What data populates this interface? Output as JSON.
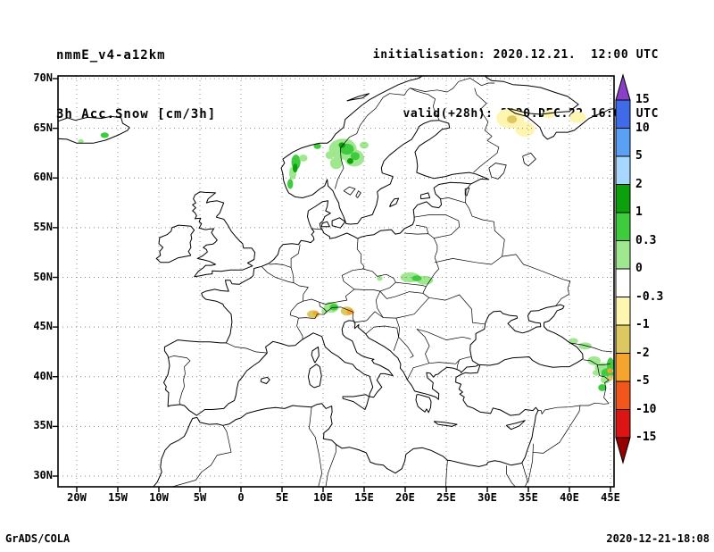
{
  "header": {
    "model": "nmmE_v4-a12km",
    "field": "3h Acc.Snow [cm/3h]",
    "init_line": "initialisation: 2020.12.21.  12:00 UTC",
    "valid_line": "valid(+28h): 2020.DEC.22 16:00 UTC"
  },
  "footer": {
    "left": "GrADS/COLA",
    "right": "2020-12-21-18:08"
  },
  "chart_data": {
    "type": "heatmap",
    "title": "3h Acc.Snow [cm/3h]",
    "model": "nmmE_v4-a12km",
    "initialisation": "2020.12.21. 12:00 UTC",
    "valid": "(+28h) 2020.DEC.22 16:00 UTC",
    "domain": {
      "lon_range": [
        -22.3,
        45.4
      ],
      "lat_range": [
        28.9,
        70.3
      ]
    },
    "grid": "dotted, 5 degree spacing",
    "x_ticks": [
      {
        "label": "20W",
        "lon": -20
      },
      {
        "label": "15W",
        "lon": -15
      },
      {
        "label": "10W",
        "lon": -10
      },
      {
        "label": "5W",
        "lon": -5
      },
      {
        "label": "0",
        "lon": 0
      },
      {
        "label": "5E",
        "lon": 5
      },
      {
        "label": "10E",
        "lon": 10
      },
      {
        "label": "15E",
        "lon": 15
      },
      {
        "label": "20E",
        "lon": 20
      },
      {
        "label": "25E",
        "lon": 25
      },
      {
        "label": "30E",
        "lon": 30
      },
      {
        "label": "35E",
        "lon": 35
      },
      {
        "label": "40E",
        "lon": 40
      },
      {
        "label": "45E",
        "lon": 45
      }
    ],
    "y_ticks": [
      {
        "label": "70N",
        "lat": 70
      },
      {
        "label": "65N",
        "lat": 65
      },
      {
        "label": "60N",
        "lat": 60
      },
      {
        "label": "55N",
        "lat": 55
      },
      {
        "label": "50N",
        "lat": 50
      },
      {
        "label": "45N",
        "lat": 45
      },
      {
        "label": "40N",
        "lat": 40
      },
      {
        "label": "35N",
        "lat": 35
      },
      {
        "label": "30N",
        "lat": 30
      }
    ],
    "palette": {
      "purple": "#8a3fc8",
      "blue": "#3f6be8",
      "light_blue": "#5aa0f5",
      "pale_blue": "#a8d8ff",
      "dark_green": "#0da00d",
      "green": "#3ecb3e",
      "light_green": "#9fe88f",
      "white": "#ffffff",
      "pale_yellow": "#fdf5b0",
      "khaki": "#ddc760",
      "orange": "#f5a42d",
      "orange_red": "#f2561d",
      "red": "#dc1414",
      "dark_red": "#960000"
    },
    "colorbar": {
      "units": "cm/3h",
      "levels": [
        "15",
        "10",
        "5",
        "2",
        "1",
        "0.3",
        "0",
        "-0.3",
        "-1",
        "-2",
        "-5",
        "-10",
        "-15"
      ],
      "colors_top_to_bottom": [
        "purple",
        "blue",
        "light_blue",
        "pale_blue",
        "dark_green",
        "green",
        "light_green",
        "white",
        "pale_yellow",
        "khaki",
        "orange",
        "orange_red",
        "red",
        "dark_red"
      ],
      "legend_position": "right"
    },
    "snow_patches": [
      {
        "region": "central-scandinavia",
        "lon": 12.4,
        "lat": 62.9,
        "rx": 1.7,
        "ry": 1.05,
        "color": "light_green",
        "level": "0 to 0.3"
      },
      {
        "region": "central-scandinavia",
        "lon": 13.8,
        "lat": 62.0,
        "rx": 1.2,
        "ry": 0.85,
        "color": "light_green",
        "level": "0 to 0.3"
      },
      {
        "region": "central-scandinavia",
        "lon": 11.6,
        "lat": 61.5,
        "rx": 0.75,
        "ry": 0.6,
        "color": "light_green",
        "level": "0 to 0.3"
      },
      {
        "region": "central-scandinavia",
        "lon": 12.9,
        "lat": 63.45,
        "rx": 0.8,
        "ry": 0.45,
        "color": "light_green",
        "level": "0 to 0.3"
      },
      {
        "region": "central-scandinavia",
        "lon": 15.0,
        "lat": 63.3,
        "rx": 0.55,
        "ry": 0.35,
        "color": "light_green",
        "level": "0 to 0.3"
      },
      {
        "region": "central-scandinavia",
        "lon": 10.8,
        "lat": 62.3,
        "rx": 0.5,
        "ry": 0.4,
        "color": "light_green",
        "level": "0 to 0.3"
      },
      {
        "region": "central-scandinavia",
        "lon": 12.9,
        "lat": 62.9,
        "rx": 0.85,
        "ry": 0.55,
        "color": "green",
        "level": "0.3 to 1"
      },
      {
        "region": "central-scandinavia",
        "lon": 13.9,
        "lat": 62.2,
        "rx": 0.55,
        "ry": 0.4,
        "color": "green",
        "level": "0.3 to 1"
      },
      {
        "region": "central-scandinavia",
        "lon": 12.3,
        "lat": 63.3,
        "rx": 0.4,
        "ry": 0.28,
        "color": "dark_green",
        "level": "1 to 2"
      },
      {
        "region": "central-scandinavia",
        "lon": 13.3,
        "lat": 61.7,
        "rx": 0.38,
        "ry": 0.3,
        "color": "dark_green",
        "level": "1 to 2"
      },
      {
        "region": "west-norway",
        "lon": 6.7,
        "lat": 61.6,
        "rx": 0.55,
        "ry": 0.75,
        "color": "green",
        "level": "0.3 to 1"
      },
      {
        "region": "west-norway",
        "lon": 6.3,
        "lat": 60.5,
        "rx": 0.45,
        "ry": 0.65,
        "color": "light_green",
        "level": "0 to 0.3"
      },
      {
        "region": "west-norway",
        "lon": 6.6,
        "lat": 61.0,
        "rx": 0.3,
        "ry": 0.45,
        "color": "dark_green",
        "level": "1 to 2"
      },
      {
        "region": "west-norway",
        "lon": 6.0,
        "lat": 59.4,
        "rx": 0.35,
        "ry": 0.5,
        "color": "green",
        "level": "0.3 to 1"
      },
      {
        "region": "west-norway",
        "lon": 7.6,
        "lat": 62.0,
        "rx": 0.5,
        "ry": 0.35,
        "color": "light_green",
        "level": "0 to 0.3"
      },
      {
        "region": "trondelag",
        "lon": 9.3,
        "lat": 63.2,
        "rx": 0.45,
        "ry": 0.3,
        "color": "green",
        "level": "0.3 to 1"
      },
      {
        "region": "iceland-east",
        "lon": -16.6,
        "lat": 64.3,
        "rx": 0.5,
        "ry": 0.28,
        "color": "green",
        "level": "0.3 to 1"
      },
      {
        "region": "iceland-south",
        "lon": -19.5,
        "lat": 63.7,
        "rx": 0.35,
        "ry": 0.2,
        "color": "light_green",
        "level": "0 to 0.3"
      },
      {
        "region": "kola-white-sea",
        "lon": 32.8,
        "lat": 66.0,
        "rx": 1.7,
        "ry": 1.0,
        "color": "pale_yellow",
        "level": "-1 to -0.3"
      },
      {
        "region": "kola-white-sea",
        "lon": 34.6,
        "lat": 64.9,
        "rx": 1.2,
        "ry": 0.75,
        "color": "pale_yellow",
        "level": "-1 to -0.3"
      },
      {
        "region": "kola-white-sea",
        "lon": 33.0,
        "lat": 65.9,
        "rx": 0.6,
        "ry": 0.4,
        "color": "khaki",
        "level": "-2 to -1"
      },
      {
        "region": "kola-white-sea",
        "lon": 37.5,
        "lat": 66.4,
        "rx": 0.7,
        "ry": 0.4,
        "color": "pale_yellow",
        "level": "-1 to -0.3"
      },
      {
        "region": "arkhangelsk",
        "lon": 41.0,
        "lat": 66.1,
        "rx": 1.0,
        "ry": 0.55,
        "color": "pale_yellow",
        "level": "-1 to -0.3"
      },
      {
        "region": "carpathians",
        "lon": 20.6,
        "lat": 50.0,
        "rx": 1.2,
        "ry": 0.5,
        "color": "light_green",
        "level": "0 to 0.3"
      },
      {
        "region": "carpathians",
        "lon": 22.4,
        "lat": 49.7,
        "rx": 1.0,
        "ry": 0.45,
        "color": "light_green",
        "level": "0 to 0.3"
      },
      {
        "region": "carpathians",
        "lon": 21.4,
        "lat": 49.9,
        "rx": 0.6,
        "ry": 0.3,
        "color": "green",
        "level": "0.3 to 1"
      },
      {
        "region": "moravia",
        "lon": 16.9,
        "lat": 49.9,
        "rx": 0.35,
        "ry": 0.25,
        "color": "light_green",
        "level": "0 to 0.3"
      },
      {
        "region": "alps",
        "lon": 11.0,
        "lat": 47.0,
        "rx": 0.9,
        "ry": 0.55,
        "color": "light_green",
        "level": "0 to 0.3"
      },
      {
        "region": "alps",
        "lon": 11.3,
        "lat": 47.0,
        "rx": 0.5,
        "ry": 0.32,
        "color": "green",
        "level": "0.3 to 1"
      },
      {
        "region": "alps",
        "lon": 10.2,
        "lat": 46.6,
        "rx": 0.4,
        "ry": 0.3,
        "color": "light_green",
        "level": "0 to 0.3"
      },
      {
        "region": "alps-east",
        "lon": 12.9,
        "lat": 46.6,
        "rx": 0.75,
        "ry": 0.45,
        "color": "khaki",
        "level": "-2 to -1"
      },
      {
        "region": "alps-east",
        "lon": 13.3,
        "lat": 46.55,
        "rx": 0.45,
        "ry": 0.3,
        "color": "orange",
        "level": "-5 to -2"
      },
      {
        "region": "alps-west",
        "lon": 8.8,
        "lat": 46.3,
        "rx": 0.75,
        "ry": 0.4,
        "color": "khaki",
        "level": "-2 to -1"
      },
      {
        "region": "alps-west",
        "lon": 9.1,
        "lat": 46.4,
        "rx": 0.35,
        "ry": 0.22,
        "color": "orange",
        "level": "-5 to -2"
      },
      {
        "region": "caucasus",
        "lon": 41.9,
        "lat": 43.1,
        "rx": 0.8,
        "ry": 0.35,
        "color": "light_green",
        "level": "0 to 0.3"
      },
      {
        "region": "caucasus",
        "lon": 40.5,
        "lat": 43.6,
        "rx": 0.55,
        "ry": 0.3,
        "color": "light_green",
        "level": "0 to 0.3"
      },
      {
        "region": "caucasus",
        "lon": 43.0,
        "lat": 41.6,
        "rx": 0.8,
        "ry": 0.45,
        "color": "light_green",
        "level": "0 to 0.3"
      },
      {
        "region": "caucasus",
        "lon": 43.3,
        "lat": 40.4,
        "rx": 0.5,
        "ry": 0.3,
        "color": "light_green",
        "level": "0 to 0.3"
      },
      {
        "region": "armenia",
        "lon": 44.0,
        "lat": 40.9,
        "rx": 0.9,
        "ry": 0.5,
        "color": "light_green",
        "level": "0 to 0.3"
      },
      {
        "region": "armenia",
        "lon": 44.6,
        "lat": 40.3,
        "rx": 0.75,
        "ry": 0.55,
        "color": "green",
        "level": "0.3 to 1"
      },
      {
        "region": "armenia",
        "lon": 45.0,
        "lat": 41.2,
        "rx": 0.45,
        "ry": 0.7,
        "color": "green",
        "level": "0.3 to 1"
      },
      {
        "region": "armenia",
        "lon": 44.9,
        "lat": 40.6,
        "rx": 0.3,
        "ry": 0.25,
        "color": "orange",
        "level": "-5 to -2"
      },
      {
        "region": "eastern-turkey",
        "lon": 44.4,
        "lat": 39.7,
        "rx": 0.6,
        "ry": 0.4,
        "color": "light_green",
        "level": "0 to 0.3"
      },
      {
        "region": "eastern-turkey",
        "lon": 44.0,
        "lat": 38.9,
        "rx": 0.5,
        "ry": 0.35,
        "color": "green",
        "level": "0.3 to 1"
      },
      {
        "region": "armenia",
        "lon": 45.0,
        "lat": 39.9,
        "rx": 0.3,
        "ry": 0.3,
        "color": "khaki",
        "level": "-2 to -1"
      }
    ]
  }
}
